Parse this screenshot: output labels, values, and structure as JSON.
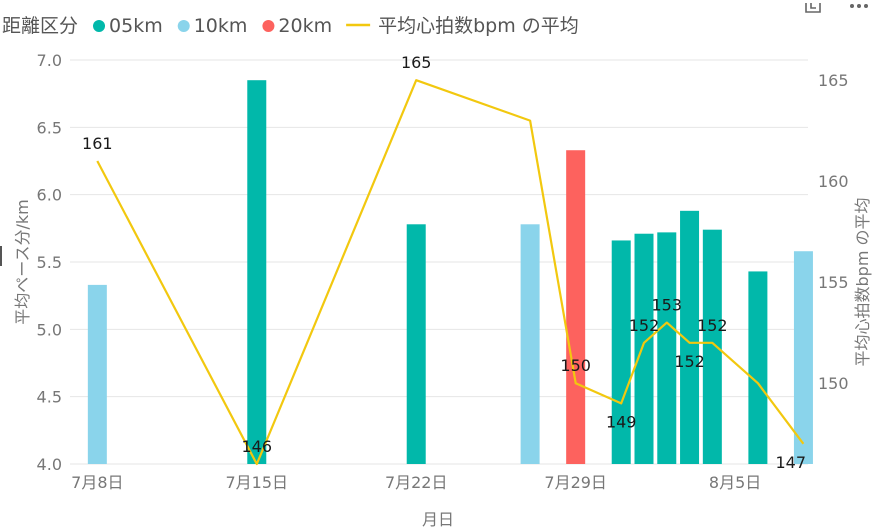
{
  "chart_data": {
    "type": "bar+line",
    "legend": {
      "title": "距離区分",
      "items": [
        {
          "name": "05km",
          "color": "#01B8AA",
          "kind": "dot"
        },
        {
          "name": "10km",
          "color": "#8AD4EB",
          "kind": "dot"
        },
        {
          "name": "20km",
          "color": "#FD625E",
          "kind": "dot"
        },
        {
          "name": "平均心拍数bpm の平均",
          "color": "#F2C80F",
          "kind": "line"
        }
      ]
    },
    "xlabel": "月日",
    "ylabel_left": "平均ペース分/km",
    "ylabel_right": "平均心拍数bpm の平均",
    "x_ticks": [
      "7月8日",
      "7月15日",
      "7月22日",
      "7月29日",
      "8月5日"
    ],
    "x_tick_days": [
      0,
      7,
      14,
      21,
      28
    ],
    "x_range_days": [
      -1.2,
      31.2
    ],
    "x_origin": "7月8日",
    "ylim_left": [
      4.0,
      7.0
    ],
    "y_ticks_left": [
      "4.0",
      "4.5",
      "5.0",
      "5.5",
      "6.0",
      "6.5",
      "7.0"
    ],
    "ylim_right": [
      146.0,
      166.0
    ],
    "y_ticks_right": [
      "150",
      "155",
      "160",
      "165"
    ],
    "bars": [
      {
        "day": 0,
        "date": "7月8日",
        "value": 5.33,
        "category": "10km"
      },
      {
        "day": 7,
        "date": "7月15日",
        "value": 6.85,
        "category": "05km"
      },
      {
        "day": 14,
        "date": "7月22日",
        "value": 5.78,
        "category": "05km"
      },
      {
        "day": 19,
        "date": "7月27日",
        "value": 5.78,
        "category": "10km"
      },
      {
        "day": 21,
        "date": "7月29日",
        "value": 6.33,
        "category": "20km"
      },
      {
        "day": 23,
        "date": "7月31日",
        "value": 5.66,
        "category": "05km"
      },
      {
        "day": 24,
        "date": "8月1日",
        "value": 5.71,
        "category": "05km"
      },
      {
        "day": 25,
        "date": "8月2日",
        "value": 5.72,
        "category": "05km"
      },
      {
        "day": 26,
        "date": "8月3日",
        "value": 5.88,
        "category": "05km"
      },
      {
        "day": 27,
        "date": "8月4日",
        "value": 5.74,
        "category": "05km"
      },
      {
        "day": 29,
        "date": "8月6日",
        "value": 5.43,
        "category": "05km"
      },
      {
        "day": 31,
        "date": "8月8日",
        "value": 5.58,
        "category": "10km"
      }
    ],
    "line": [
      {
        "day": 0,
        "value": 161,
        "label": "161"
      },
      {
        "day": 7,
        "value": 146,
        "label": "146"
      },
      {
        "day": 14,
        "value": 165,
        "label": "165"
      },
      {
        "day": 19,
        "value": 163,
        "label": ""
      },
      {
        "day": 21,
        "value": 150,
        "label": "150"
      },
      {
        "day": 23,
        "value": 149,
        "label": "149"
      },
      {
        "day": 24,
        "value": 152,
        "label": "152"
      },
      {
        "day": 25,
        "value": 153,
        "label": "153"
      },
      {
        "day": 26,
        "value": 152,
        "label": "152"
      },
      {
        "day": 27,
        "value": 152,
        "label": "152"
      },
      {
        "day": 29,
        "value": 150,
        "label": ""
      },
      {
        "day": 31,
        "value": 147,
        "label": "147"
      }
    ],
    "grid": true
  },
  "toolbar": {
    "icons": [
      "focus-mode-icon",
      "more-options-icon"
    ]
  }
}
